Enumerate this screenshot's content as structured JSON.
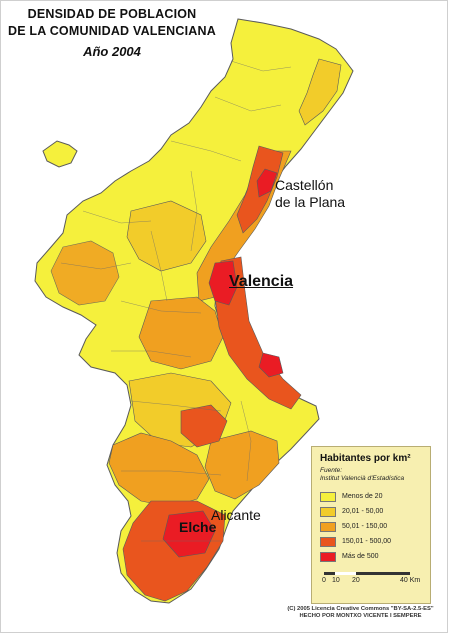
{
  "title": {
    "line1": "DENSIDAD DE POBLACION",
    "line2": "DE LA COMUNIDAD VALENCIANA",
    "year": "Año 2004"
  },
  "cities": {
    "castellon_line1": "Castellón",
    "castellon_line2": "de la Plana",
    "valencia": "Valencia",
    "alicante": "Alicante",
    "elche": "Elche"
  },
  "legend": {
    "title": "Habitantes por km²",
    "source_label": "Fuente:",
    "source": "Institut Valencià d'Estadística",
    "items": [
      {
        "label": "Menos de 20",
        "color": "#f5f03c"
      },
      {
        "label": "20,01 - 50,00",
        "color": "#f2cc2a"
      },
      {
        "label": "50,01 - 150,00",
        "color": "#f0a020"
      },
      {
        "label": "150,01 - 500,00",
        "color": "#e9551e"
      },
      {
        "label": "Más de 500",
        "color": "#ea1c24"
      }
    ],
    "scale_ticks": [
      "0",
      "10",
      "20",
      "40 Km"
    ]
  },
  "credits": {
    "line1": "(C) 2005 Licencia Creative Commons \"BY-SA-2.5-ES\"",
    "line2": "HECHO POR MONTXO VICENTE I SEMPERE"
  },
  "colors": {
    "outline": "#5a5a5a",
    "low": "#f5f03c",
    "mid_low": "#f2cc2a",
    "mid": "#f0a020",
    "high": "#e9551e",
    "very_high": "#ea1c24"
  }
}
